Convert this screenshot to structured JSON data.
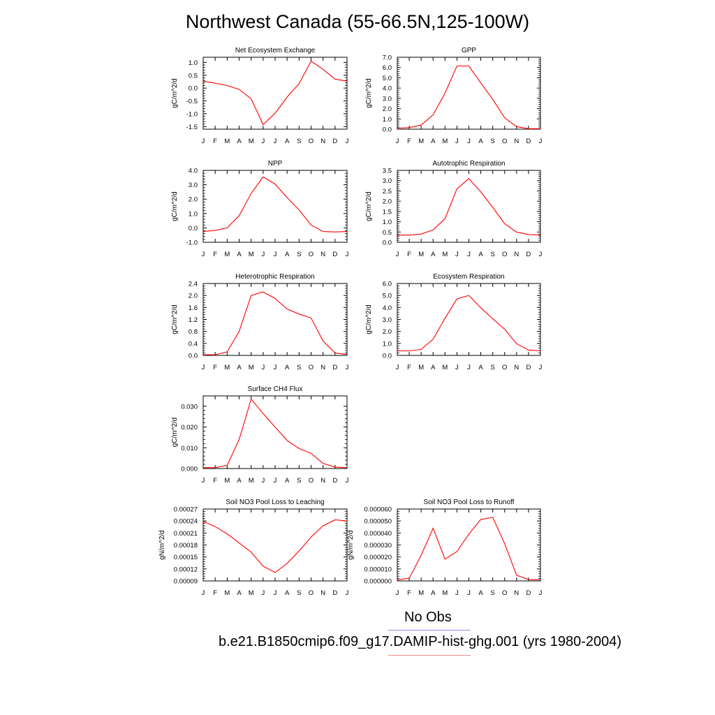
{
  "page": {
    "title": "Northwest Canada (55-66.5N,125-100W)",
    "legend": {
      "obs_label": "No Obs",
      "obs_color": "#8a8af0",
      "model_label": "b.e21.B1850cmip6.f09_g17.DAMIP-hist-ghg.001 (yrs 1980-2004)",
      "model_color": "#f08a8a"
    }
  },
  "chart_data": [
    {
      "type": "line",
      "title": "Net Ecosystem Exchange",
      "ylabel": "gC/m^2/d",
      "xlabel": "",
      "categories": [
        "J",
        "F",
        "M",
        "A",
        "M",
        "J",
        "J",
        "A",
        "S",
        "O",
        "N",
        "D",
        "J"
      ],
      "ylim": [
        -1.6,
        1.2
      ],
      "yticks": [
        "1.0",
        "0.5",
        "0.0",
        "-0.5",
        "-1.0",
        "-1.5"
      ],
      "yticks_values": [
        1.0,
        0.5,
        0.0,
        -0.5,
        -1.0,
        -1.5
      ],
      "series": [
        {
          "color": "#ff0000",
          "values": [
            0.27,
            0.19,
            0.1,
            -0.05,
            -0.42,
            -1.42,
            -0.98,
            -0.35,
            0.17,
            1.05,
            0.73,
            0.35,
            0.27
          ]
        }
      ]
    },
    {
      "type": "line",
      "title": "GPP",
      "ylabel": "gC/m^2/d",
      "xlabel": "",
      "categories": [
        "J",
        "F",
        "M",
        "A",
        "M",
        "J",
        "J",
        "A",
        "S",
        "O",
        "N",
        "D",
        "J"
      ],
      "ylim": [
        0,
        7.0
      ],
      "yticks": [
        "7.0",
        "6.0",
        "5.0",
        "4.0",
        "3.0",
        "2.0",
        "1.0",
        "0.0"
      ],
      "yticks_values": [
        7,
        6,
        5,
        4,
        3,
        2,
        1,
        0
      ],
      "series": [
        {
          "color": "#ff0000",
          "values": [
            0.1,
            0.15,
            0.4,
            1.4,
            3.5,
            6.15,
            6.15,
            4.5,
            2.9,
            1.1,
            0.25,
            0.05,
            0.05
          ]
        }
      ]
    },
    {
      "type": "line",
      "title": "NPP",
      "ylabel": "gC/m^2/d",
      "xlabel": "",
      "categories": [
        "J",
        "F",
        "M",
        "A",
        "M",
        "J",
        "J",
        "A",
        "S",
        "O",
        "N",
        "D",
        "J"
      ],
      "ylim": [
        -1.0,
        4.0
      ],
      "yticks": [
        "4.0",
        "3.0",
        "2.0",
        "1.0",
        "0.0",
        "-1.0"
      ],
      "yticks_values": [
        4,
        3,
        2,
        1,
        0,
        -1
      ],
      "series": [
        {
          "color": "#ff0000",
          "values": [
            -0.25,
            -0.18,
            0.0,
            0.85,
            2.4,
            3.55,
            3.05,
            2.1,
            1.25,
            0.2,
            -0.25,
            -0.28,
            -0.25
          ]
        }
      ]
    },
    {
      "type": "line",
      "title": "Autotrophic Respiration",
      "ylabel": "gC/m^2/d",
      "xlabel": "",
      "categories": [
        "J",
        "F",
        "M",
        "A",
        "M",
        "J",
        "J",
        "A",
        "S",
        "O",
        "N",
        "D",
        "J"
      ],
      "ylim": [
        0,
        3.5
      ],
      "yticks": [
        "3.5",
        "3.0",
        "2.5",
        "2.0",
        "1.5",
        "1.0",
        "0.5",
        "0.0"
      ],
      "yticks_values": [
        3.5,
        3.0,
        2.5,
        2.0,
        1.5,
        1.0,
        0.5,
        0.0
      ],
      "series": [
        {
          "color": "#ff0000",
          "values": [
            0.35,
            0.35,
            0.4,
            0.6,
            1.15,
            2.6,
            3.1,
            2.45,
            1.7,
            0.9,
            0.5,
            0.38,
            0.35
          ]
        }
      ]
    },
    {
      "type": "line",
      "title": "Heterotrophic Respiration",
      "ylabel": "gC/m^2/d",
      "xlabel": "",
      "categories": [
        "J",
        "F",
        "M",
        "A",
        "M",
        "J",
        "J",
        "A",
        "S",
        "O",
        "N",
        "D",
        "J"
      ],
      "ylim": [
        0,
        2.4
      ],
      "yticks": [
        "2.4",
        "2.0",
        "1.6",
        "1.2",
        "0.8",
        "0.4",
        "0.0"
      ],
      "yticks_values": [
        2.4,
        2.0,
        1.6,
        1.2,
        0.8,
        0.4,
        0.0
      ],
      "series": [
        {
          "color": "#ff0000",
          "values": [
            0.02,
            0.02,
            0.12,
            0.8,
            2.0,
            2.12,
            1.9,
            1.55,
            1.38,
            1.25,
            0.48,
            0.08,
            0.03
          ]
        }
      ]
    },
    {
      "type": "line",
      "title": "Ecosystem Respiration",
      "ylabel": "gC/m^2/d",
      "xlabel": "",
      "categories": [
        "J",
        "F",
        "M",
        "A",
        "M",
        "J",
        "J",
        "A",
        "S",
        "O",
        "N",
        "D",
        "J"
      ],
      "ylim": [
        0,
        6.0
      ],
      "yticks": [
        "6.0",
        "5.0",
        "4.0",
        "3.0",
        "2.0",
        "1.0",
        "0.0"
      ],
      "yticks_values": [
        6,
        5,
        4,
        3,
        2,
        1,
        0
      ],
      "series": [
        {
          "color": "#ff0000",
          "values": [
            0.38,
            0.38,
            0.5,
            1.35,
            3.1,
            4.72,
            5.0,
            3.98,
            3.05,
            2.18,
            0.98,
            0.45,
            0.38
          ]
        }
      ]
    },
    {
      "type": "line",
      "title": "Surface CH4 Flux",
      "ylabel": "gC/m^2/d",
      "xlabel": "",
      "categories": [
        "J",
        "F",
        "M",
        "A",
        "M",
        "J",
        "J",
        "A",
        "S",
        "O",
        "N",
        "D",
        "J"
      ],
      "ylim": [
        0,
        0.035
      ],
      "yticks": [
        "0.030",
        "0.020",
        "0.010",
        "0.000"
      ],
      "yticks_values": [
        0.03,
        0.02,
        0.01,
        0.0
      ],
      "series": [
        {
          "color": "#ff0000",
          "values": [
            0.0004,
            0.0004,
            0.0015,
            0.014,
            0.0335,
            0.0265,
            0.02,
            0.0135,
            0.0097,
            0.0073,
            0.0025,
            0.0007,
            0.0004
          ]
        }
      ]
    },
    {
      "type": "line",
      "title": "Soil NO3 Pool Loss to Leaching",
      "ylabel": "gN/m^2/d",
      "xlabel": "",
      "categories": [
        "J",
        "F",
        "M",
        "A",
        "M",
        "J",
        "J",
        "A",
        "S",
        "O",
        "N",
        "D",
        "J"
      ],
      "ylim": [
        9e-05,
        0.00027
      ],
      "yticks": [
        "0.00027",
        "0.00024",
        "0.00021",
        "0.00018",
        "0.00015",
        "0.00012",
        "0.00009"
      ],
      "yticks_values": [
        0.00027,
        0.00024,
        0.00021,
        0.00018,
        0.00015,
        0.00012,
        9e-05
      ],
      "series": [
        {
          "color": "#ff0000",
          "values": [
            0.000239,
            0.000226,
            0.000208,
            0.000185,
            0.000162,
            0.000127,
            0.000111,
            0.000134,
            0.000165,
            0.0002,
            0.000228,
            0.000243,
            0.00024
          ]
        }
      ]
    },
    {
      "type": "line",
      "title": "Soil NO3 Pool Loss to Runoff",
      "ylabel": "gN/m^2/d",
      "xlabel": "",
      "categories": [
        "J",
        "F",
        "M",
        "A",
        "M",
        "J",
        "J",
        "A",
        "S",
        "O",
        "N",
        "D",
        "J"
      ],
      "ylim": [
        0,
        6e-05
      ],
      "yticks": [
        "0.000060",
        "0.000050",
        "0.000040",
        "0.000030",
        "0.000020",
        "0.000010",
        "0.000000"
      ],
      "yticks_values": [
        6e-05,
        5e-05,
        4e-05,
        3e-05,
        2e-05,
        1e-05,
        0.0
      ],
      "series": [
        {
          "color": "#ff0000",
          "values": [
            8e-07,
            2.3e-06,
            2.15e-05,
            4.4e-05,
            1.82e-05,
            2.45e-05,
            3.9e-05,
            5.13e-05,
            5.3e-05,
            3.1e-05,
            4.8e-06,
            1.2e-06,
            8e-07
          ]
        }
      ]
    }
  ]
}
